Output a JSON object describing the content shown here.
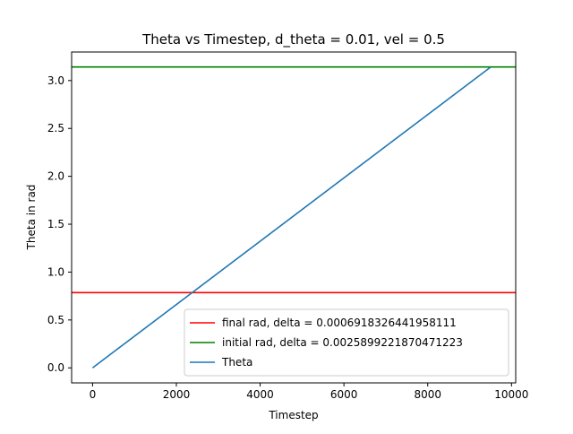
{
  "chart_data": {
    "type": "line",
    "title": "Theta vs Timestep, d_theta = 0.01, vel = 0.5",
    "xlabel": "Timestep",
    "ylabel": "Theta in rad",
    "xlim": [
      -500,
      10100
    ],
    "ylim": [
      -0.157,
      3.298
    ],
    "xticks": [
      0,
      2000,
      4000,
      6000,
      8000,
      10000
    ],
    "xtick_labels": [
      "0",
      "2000",
      "4000",
      "6000",
      "8000",
      "10000"
    ],
    "yticks": [
      0.0,
      0.5,
      1.0,
      1.5,
      2.0,
      2.5,
      3.0
    ],
    "ytick_labels": [
      "0.0",
      "0.5",
      "1.0",
      "1.5",
      "2.0",
      "2.5",
      "3.0"
    ],
    "grid": false,
    "legend_position": "lower-right",
    "series": [
      {
        "name": "final rad, delta = 0.0006918326441958111",
        "kind": "hline",
        "y": 0.7854,
        "color": "#ff0000"
      },
      {
        "name": "initial rad, delta = 0.0025899221870471223",
        "kind": "hline",
        "y": 3.1416,
        "color": "#008000"
      },
      {
        "name": "Theta",
        "kind": "line",
        "x": [
          0,
          9500
        ],
        "y": [
          0.0,
          3.14
        ],
        "color": "#1f77b4"
      }
    ]
  }
}
